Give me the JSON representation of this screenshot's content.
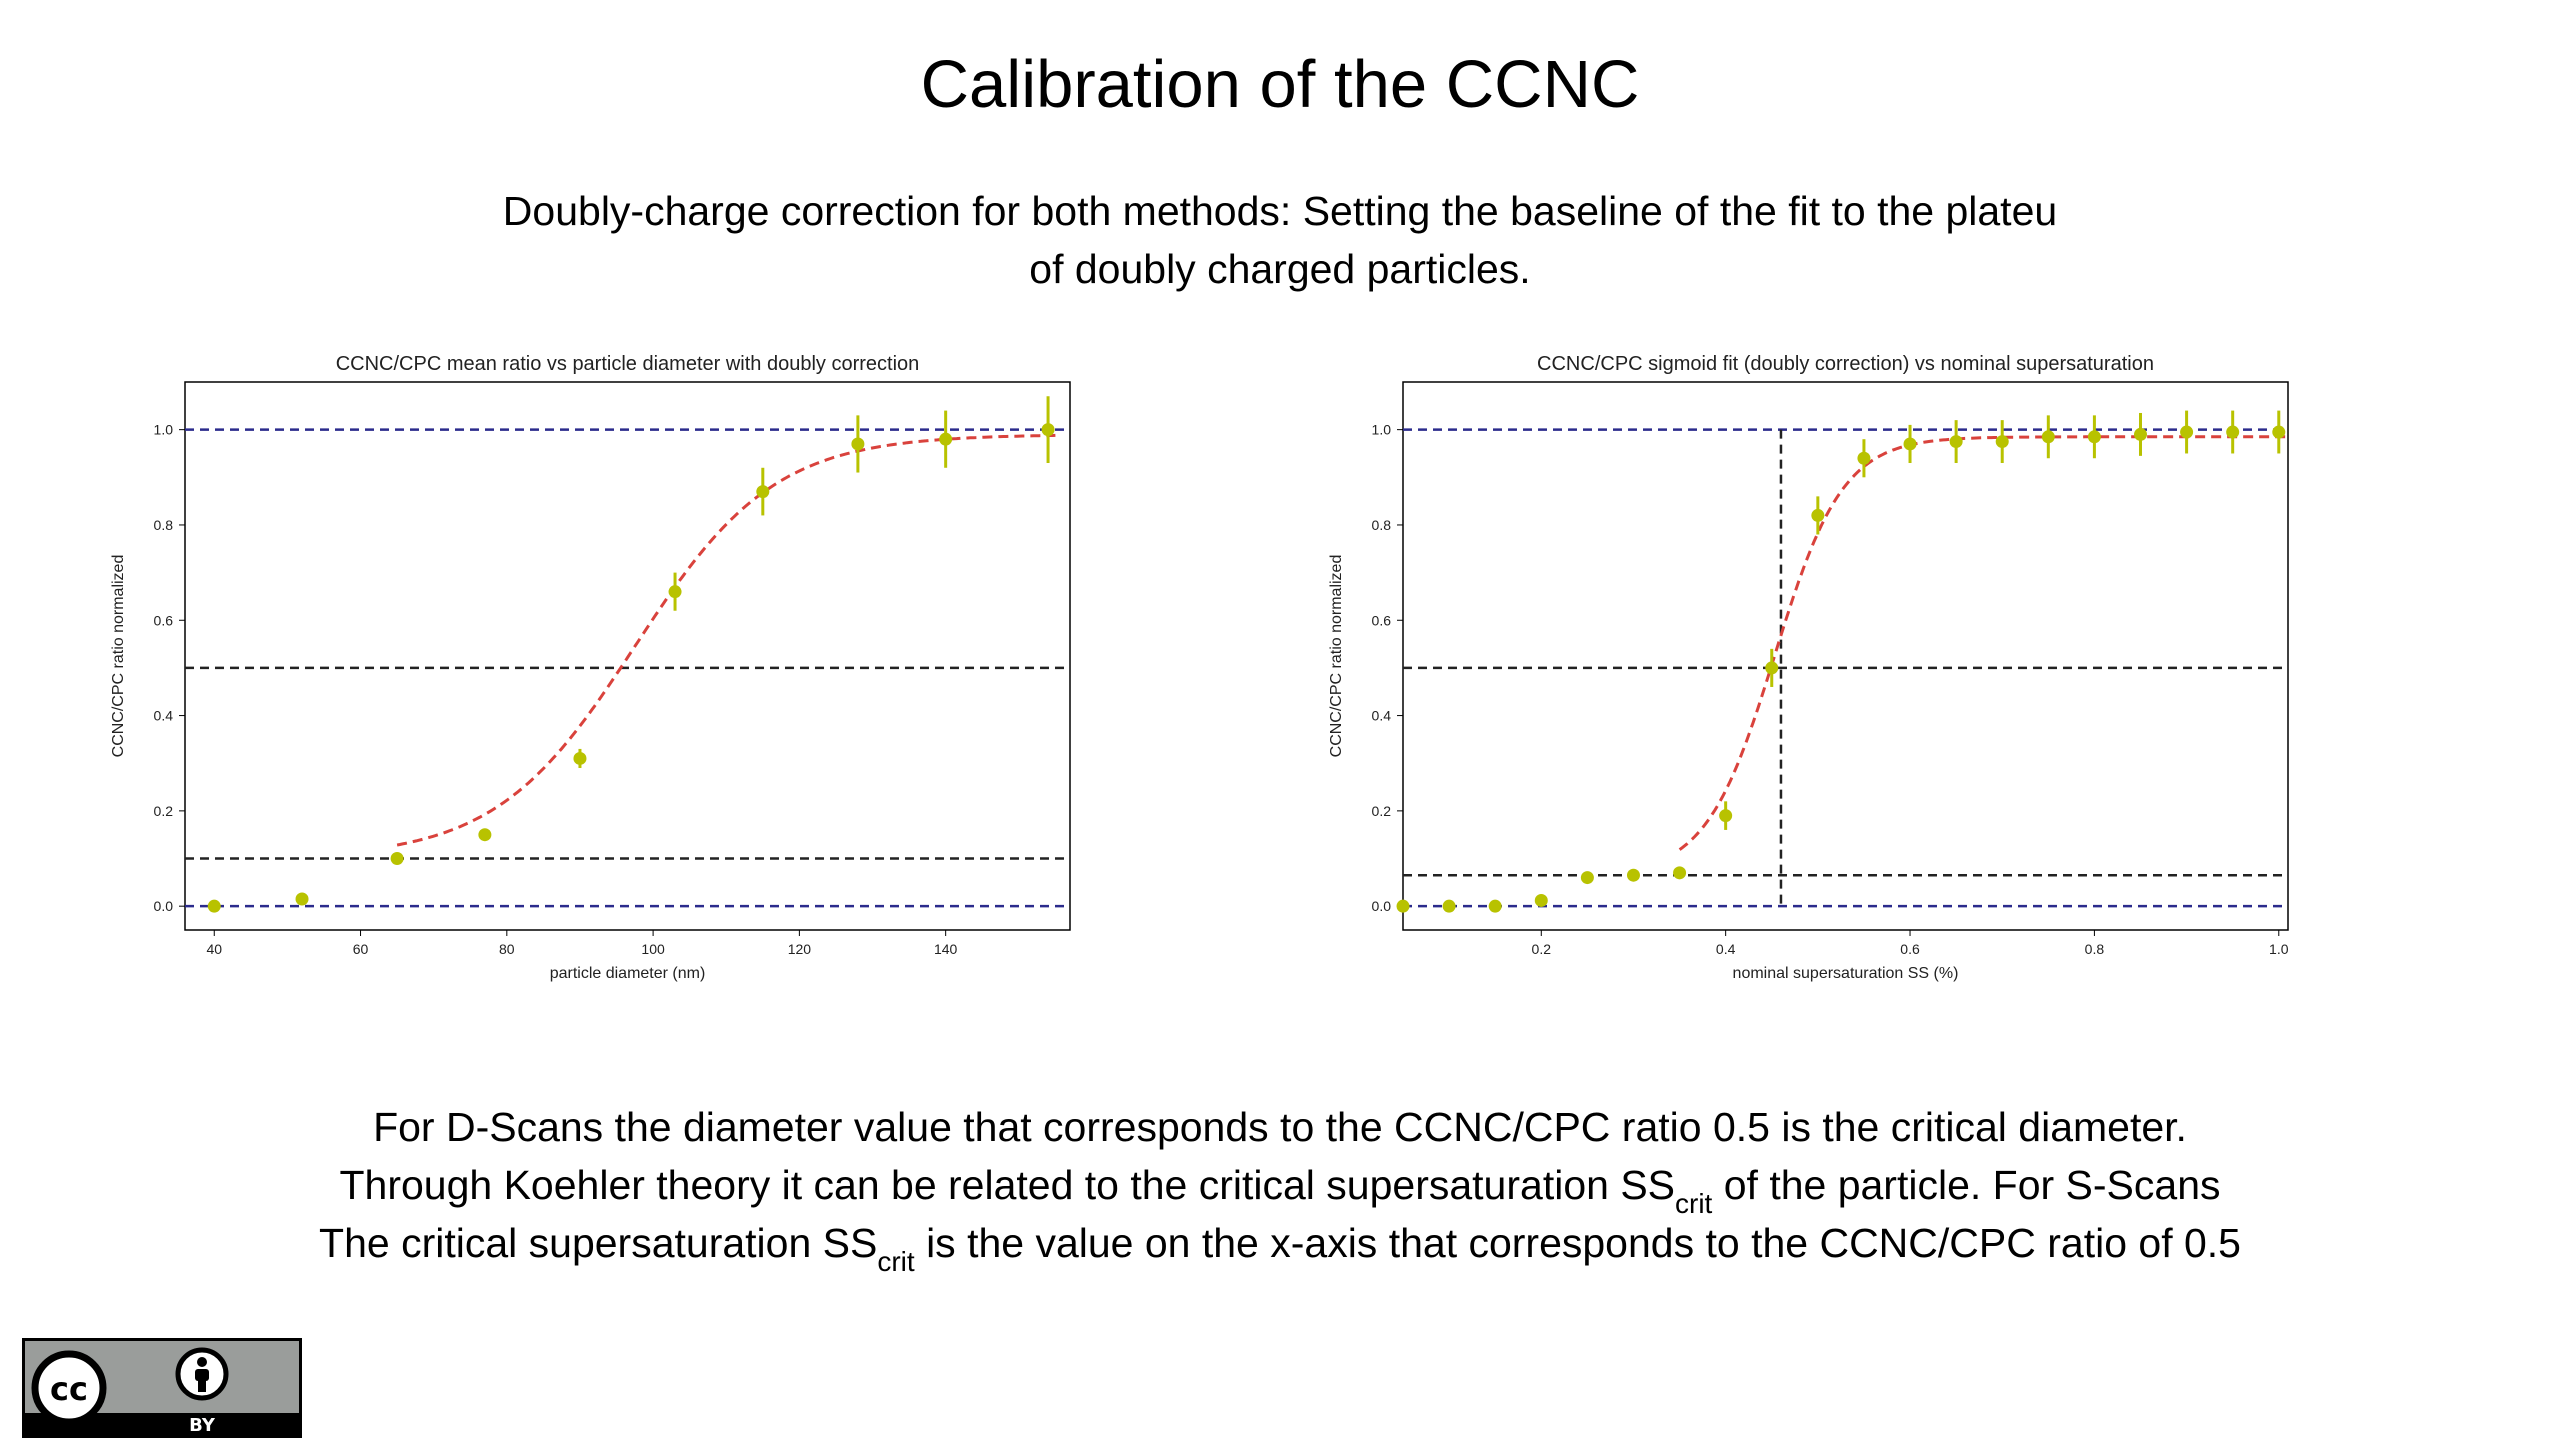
{
  "slide": {
    "title": "Calibration of the CCNC",
    "subtitle_line1": "Doubly-charge correction for both methods: Setting the baseline of the fit to the plateu",
    "subtitle_line2": "of doubly charged particles.",
    "body_line1": "For D-Scans the diameter value that corresponds to the CCNC/CPC ratio 0.5 is the critical diameter.",
    "body_line2_a": "Through  Koehler theory it can be related to the critical supersaturation SS",
    "body_line2_sub": "crit",
    "body_line2_b": " of  the particle. For S-Scans",
    "body_line3_a": "The critical supersaturation SS",
    "body_line3_sub": "crit",
    "body_line3_b": " is the value on the x-axis that corresponds to the CCNC/CPC ratio of 0.5"
  },
  "license_badge": {
    "cc_icon": "cc-icon",
    "by_icon": "attribution-person-icon",
    "by_label": "BY"
  },
  "colors": {
    "points": "#b8c200",
    "fit": "#d9423c",
    "blue_dash": "#2b2b8c",
    "black_dash": "#222222"
  },
  "chart_data": [
    {
      "type": "scatter",
      "title": "CCNC/CPC mean ratio vs particle diameter with doubly correction",
      "xlabel": "particle diameter (nm)",
      "ylabel": "CCNC/CPC ratio normalized",
      "xlim": [
        36,
        157
      ],
      "ylim": [
        -0.05,
        1.1
      ],
      "xticks": [
        40,
        60,
        80,
        100,
        120,
        140
      ],
      "yticks": [
        0.0,
        0.2,
        0.4,
        0.6,
        0.8,
        1.0
      ],
      "points": [
        {
          "x": 40,
          "y": 0.0,
          "err": 0.01
        },
        {
          "x": 52,
          "y": 0.015,
          "err": 0.01
        },
        {
          "x": 65,
          "y": 0.1,
          "err": 0.01
        },
        {
          "x": 77,
          "y": 0.15,
          "err": 0.01
        },
        {
          "x": 90,
          "y": 0.31,
          "err": 0.02
        },
        {
          "x": 103,
          "y": 0.66,
          "err": 0.04
        },
        {
          "x": 115,
          "y": 0.87,
          "err": 0.05
        },
        {
          "x": 128,
          "y": 0.97,
          "err": 0.06
        },
        {
          "x": 140,
          "y": 0.98,
          "err": 0.06
        },
        {
          "x": 154,
          "y": 1.0,
          "err": 0.07
        }
      ],
      "fit": {
        "baseline": 0.1,
        "top": 0.99,
        "x0": 97.5,
        "k": 0.105,
        "x_start": 65,
        "x_end": 155
      },
      "hlines_blue": [
        1.0,
        0.0
      ],
      "hlines_black": [
        0.5,
        0.1
      ],
      "vlines_black": []
    },
    {
      "type": "scatter",
      "title": "CCNC/CPC sigmoid fit (doubly correction) vs nominal supersaturation",
      "xlabel": "nominal supersaturation SS (%)",
      "ylabel": "CCNC/CPC ratio normalized",
      "xlim": [
        0.05,
        1.01
      ],
      "ylim": [
        -0.05,
        1.1
      ],
      "xticks": [
        0.2,
        0.4,
        0.6,
        0.8,
        1.0
      ],
      "yticks": [
        0.0,
        0.2,
        0.4,
        0.6,
        0.8,
        1.0
      ],
      "points": [
        {
          "x": 0.05,
          "y": 0.0,
          "err": 0.005
        },
        {
          "x": 0.1,
          "y": 0.0,
          "err": 0.005
        },
        {
          "x": 0.15,
          "y": 0.0,
          "err": 0.005
        },
        {
          "x": 0.2,
          "y": 0.012,
          "err": 0.01
        },
        {
          "x": 0.25,
          "y": 0.06,
          "err": 0.01
        },
        {
          "x": 0.3,
          "y": 0.065,
          "err": 0.01
        },
        {
          "x": 0.35,
          "y": 0.07,
          "err": 0.01
        },
        {
          "x": 0.4,
          "y": 0.19,
          "err": 0.03
        },
        {
          "x": 0.45,
          "y": 0.5,
          "err": 0.04
        },
        {
          "x": 0.5,
          "y": 0.82,
          "err": 0.04
        },
        {
          "x": 0.55,
          "y": 0.94,
          "err": 0.04
        },
        {
          "x": 0.6,
          "y": 0.97,
          "err": 0.04
        },
        {
          "x": 0.65,
          "y": 0.975,
          "err": 0.045
        },
        {
          "x": 0.7,
          "y": 0.975,
          "err": 0.045
        },
        {
          "x": 0.75,
          "y": 0.985,
          "err": 0.045
        },
        {
          "x": 0.8,
          "y": 0.985,
          "err": 0.045
        },
        {
          "x": 0.85,
          "y": 0.99,
          "err": 0.045
        },
        {
          "x": 0.9,
          "y": 0.995,
          "err": 0.045
        },
        {
          "x": 0.95,
          "y": 0.995,
          "err": 0.045
        },
        {
          "x": 1.0,
          "y": 0.995,
          "err": 0.045
        }
      ],
      "fit": {
        "baseline": 0.065,
        "top": 0.985,
        "x0": 0.453,
        "k": 27,
        "x_start": 0.35,
        "x_end": 1.01
      },
      "hlines_blue": [
        1.0,
        0.0
      ],
      "hlines_black": [
        0.5,
        0.065
      ],
      "vlines_black": [
        0.46
      ]
    }
  ]
}
